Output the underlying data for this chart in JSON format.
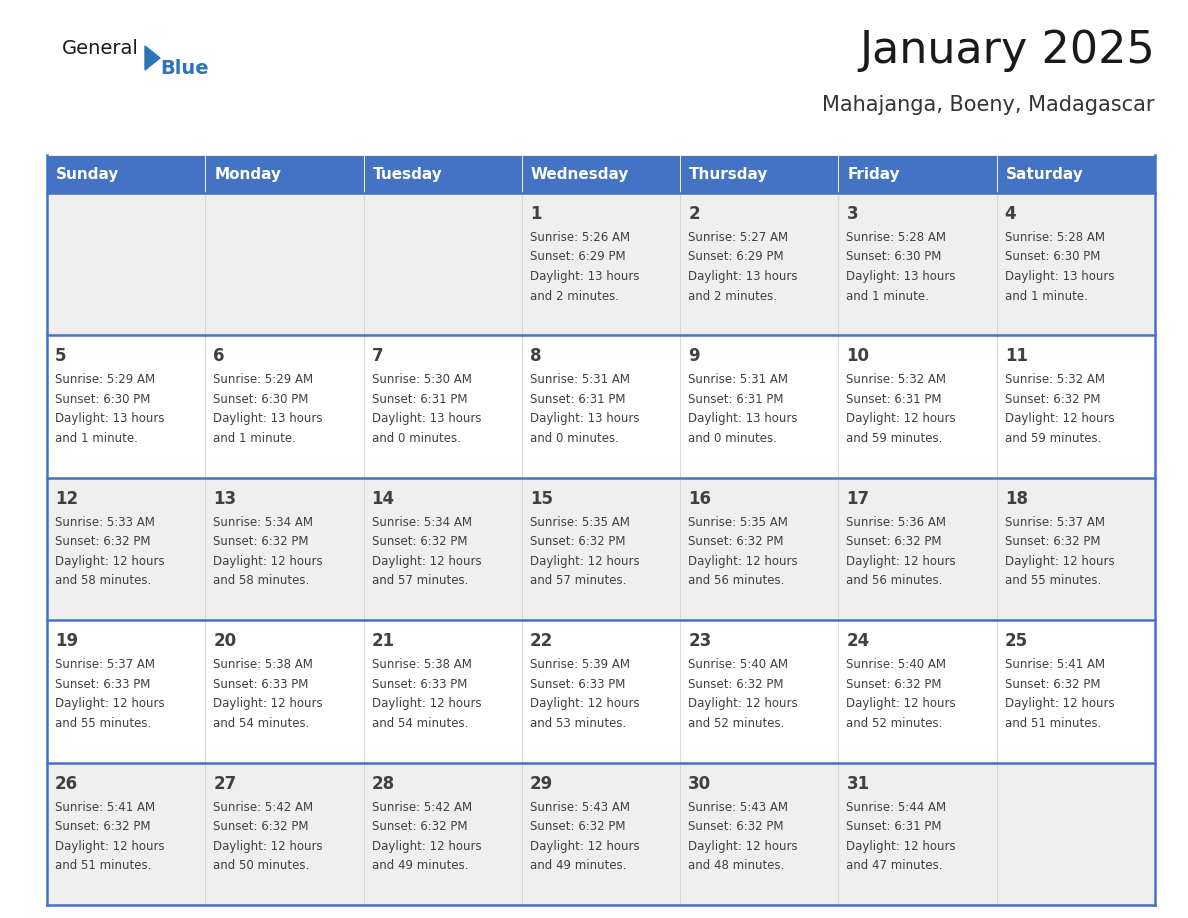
{
  "title": "January 2025",
  "subtitle": "Mahajanga, Boeny, Madagascar",
  "days_of_week": [
    "Sunday",
    "Monday",
    "Tuesday",
    "Wednesday",
    "Thursday",
    "Friday",
    "Saturday"
  ],
  "header_bg": "#4472C4",
  "header_text_color": "#FFFFFF",
  "cell_bg_light": "#EFEFEF",
  "cell_bg_white": "#FFFFFF",
  "border_color": "#4472C4",
  "row_sep_color": "#4472C4",
  "text_color": "#404040",
  "title_color": "#1a1a1a",
  "subtitle_color": "#333333",
  "logo_general_color": "#1a1a1a",
  "logo_blue_color": "#2E75B6",
  "calendar": [
    [
      {
        "day": null
      },
      {
        "day": null
      },
      {
        "day": null
      },
      {
        "day": 1,
        "sunrise": "5:26 AM",
        "sunset": "6:29 PM",
        "daylight_h": "13 hours",
        "daylight_m": "and 2 minutes."
      },
      {
        "day": 2,
        "sunrise": "5:27 AM",
        "sunset": "6:29 PM",
        "daylight_h": "13 hours",
        "daylight_m": "and 2 minutes."
      },
      {
        "day": 3,
        "sunrise": "5:28 AM",
        "sunset": "6:30 PM",
        "daylight_h": "13 hours",
        "daylight_m": "and 1 minute."
      },
      {
        "day": 4,
        "sunrise": "5:28 AM",
        "sunset": "6:30 PM",
        "daylight_h": "13 hours",
        "daylight_m": "and 1 minute."
      }
    ],
    [
      {
        "day": 5,
        "sunrise": "5:29 AM",
        "sunset": "6:30 PM",
        "daylight_h": "13 hours",
        "daylight_m": "and 1 minute."
      },
      {
        "day": 6,
        "sunrise": "5:29 AM",
        "sunset": "6:30 PM",
        "daylight_h": "13 hours",
        "daylight_m": "and 1 minute."
      },
      {
        "day": 7,
        "sunrise": "5:30 AM",
        "sunset": "6:31 PM",
        "daylight_h": "13 hours",
        "daylight_m": "and 0 minutes."
      },
      {
        "day": 8,
        "sunrise": "5:31 AM",
        "sunset": "6:31 PM",
        "daylight_h": "13 hours",
        "daylight_m": "and 0 minutes."
      },
      {
        "day": 9,
        "sunrise": "5:31 AM",
        "sunset": "6:31 PM",
        "daylight_h": "13 hours",
        "daylight_m": "and 0 minutes."
      },
      {
        "day": 10,
        "sunrise": "5:32 AM",
        "sunset": "6:31 PM",
        "daylight_h": "12 hours",
        "daylight_m": "and 59 minutes."
      },
      {
        "day": 11,
        "sunrise": "5:32 AM",
        "sunset": "6:32 PM",
        "daylight_h": "12 hours",
        "daylight_m": "and 59 minutes."
      }
    ],
    [
      {
        "day": 12,
        "sunrise": "5:33 AM",
        "sunset": "6:32 PM",
        "daylight_h": "12 hours",
        "daylight_m": "and 58 minutes."
      },
      {
        "day": 13,
        "sunrise": "5:34 AM",
        "sunset": "6:32 PM",
        "daylight_h": "12 hours",
        "daylight_m": "and 58 minutes."
      },
      {
        "day": 14,
        "sunrise": "5:34 AM",
        "sunset": "6:32 PM",
        "daylight_h": "12 hours",
        "daylight_m": "and 57 minutes."
      },
      {
        "day": 15,
        "sunrise": "5:35 AM",
        "sunset": "6:32 PM",
        "daylight_h": "12 hours",
        "daylight_m": "and 57 minutes."
      },
      {
        "day": 16,
        "sunrise": "5:35 AM",
        "sunset": "6:32 PM",
        "daylight_h": "12 hours",
        "daylight_m": "and 56 minutes."
      },
      {
        "day": 17,
        "sunrise": "5:36 AM",
        "sunset": "6:32 PM",
        "daylight_h": "12 hours",
        "daylight_m": "and 56 minutes."
      },
      {
        "day": 18,
        "sunrise": "5:37 AM",
        "sunset": "6:32 PM",
        "daylight_h": "12 hours",
        "daylight_m": "and 55 minutes."
      }
    ],
    [
      {
        "day": 19,
        "sunrise": "5:37 AM",
        "sunset": "6:33 PM",
        "daylight_h": "12 hours",
        "daylight_m": "and 55 minutes."
      },
      {
        "day": 20,
        "sunrise": "5:38 AM",
        "sunset": "6:33 PM",
        "daylight_h": "12 hours",
        "daylight_m": "and 54 minutes."
      },
      {
        "day": 21,
        "sunrise": "5:38 AM",
        "sunset": "6:33 PM",
        "daylight_h": "12 hours",
        "daylight_m": "and 54 minutes."
      },
      {
        "day": 22,
        "sunrise": "5:39 AM",
        "sunset": "6:33 PM",
        "daylight_h": "12 hours",
        "daylight_m": "and 53 minutes."
      },
      {
        "day": 23,
        "sunrise": "5:40 AM",
        "sunset": "6:32 PM",
        "daylight_h": "12 hours",
        "daylight_m": "and 52 minutes."
      },
      {
        "day": 24,
        "sunrise": "5:40 AM",
        "sunset": "6:32 PM",
        "daylight_h": "12 hours",
        "daylight_m": "and 52 minutes."
      },
      {
        "day": 25,
        "sunrise": "5:41 AM",
        "sunset": "6:32 PM",
        "daylight_h": "12 hours",
        "daylight_m": "and 51 minutes."
      }
    ],
    [
      {
        "day": 26,
        "sunrise": "5:41 AM",
        "sunset": "6:32 PM",
        "daylight_h": "12 hours",
        "daylight_m": "and 51 minutes."
      },
      {
        "day": 27,
        "sunrise": "5:42 AM",
        "sunset": "6:32 PM",
        "daylight_h": "12 hours",
        "daylight_m": "and 50 minutes."
      },
      {
        "day": 28,
        "sunrise": "5:42 AM",
        "sunset": "6:32 PM",
        "daylight_h": "12 hours",
        "daylight_m": "and 49 minutes."
      },
      {
        "day": 29,
        "sunrise": "5:43 AM",
        "sunset": "6:32 PM",
        "daylight_h": "12 hours",
        "daylight_m": "and 49 minutes."
      },
      {
        "day": 30,
        "sunrise": "5:43 AM",
        "sunset": "6:32 PM",
        "daylight_h": "12 hours",
        "daylight_m": "and 48 minutes."
      },
      {
        "day": 31,
        "sunrise": "5:44 AM",
        "sunset": "6:31 PM",
        "daylight_h": "12 hours",
        "daylight_m": "and 47 minutes."
      },
      {
        "day": null
      }
    ]
  ]
}
